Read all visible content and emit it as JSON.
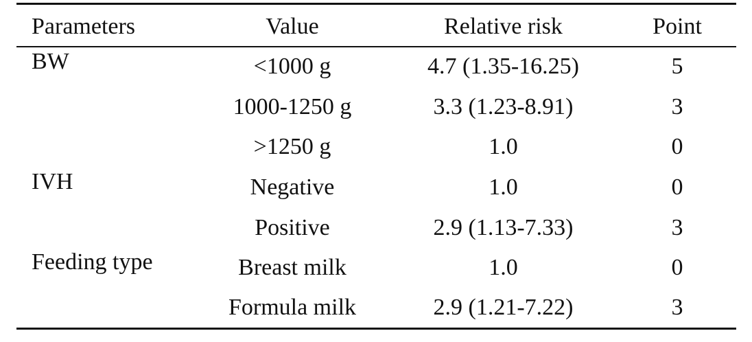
{
  "table": {
    "headers": {
      "parameters": "Parameters",
      "value": "Value",
      "relative_risk": "Relative risk",
      "point": "Point"
    },
    "rows": [
      {
        "parameter": "BW",
        "value": "<1000 g",
        "relative_risk": "4.7 (1.35-16.25)",
        "point": "5"
      },
      {
        "parameter": "",
        "value": "1000-1250 g",
        "relative_risk": "3.3 (1.23-8.91)",
        "point": "3"
      },
      {
        "parameter": "",
        "value": ">1250 g",
        "relative_risk": "1.0",
        "point": "0"
      },
      {
        "parameter": "IVH",
        "value": "Negative",
        "relative_risk": "1.0",
        "point": "0"
      },
      {
        "parameter": "",
        "value": "Positive",
        "relative_risk": "2.9 (1.13-7.33)",
        "point": "3"
      },
      {
        "parameter": "Feeding type",
        "value": "Breast milk",
        "relative_risk": "1.0",
        "point": "0"
      },
      {
        "parameter": "",
        "value": "Formula milk",
        "relative_risk": "2.9 (1.21-7.22)",
        "point": "3"
      }
    ]
  }
}
